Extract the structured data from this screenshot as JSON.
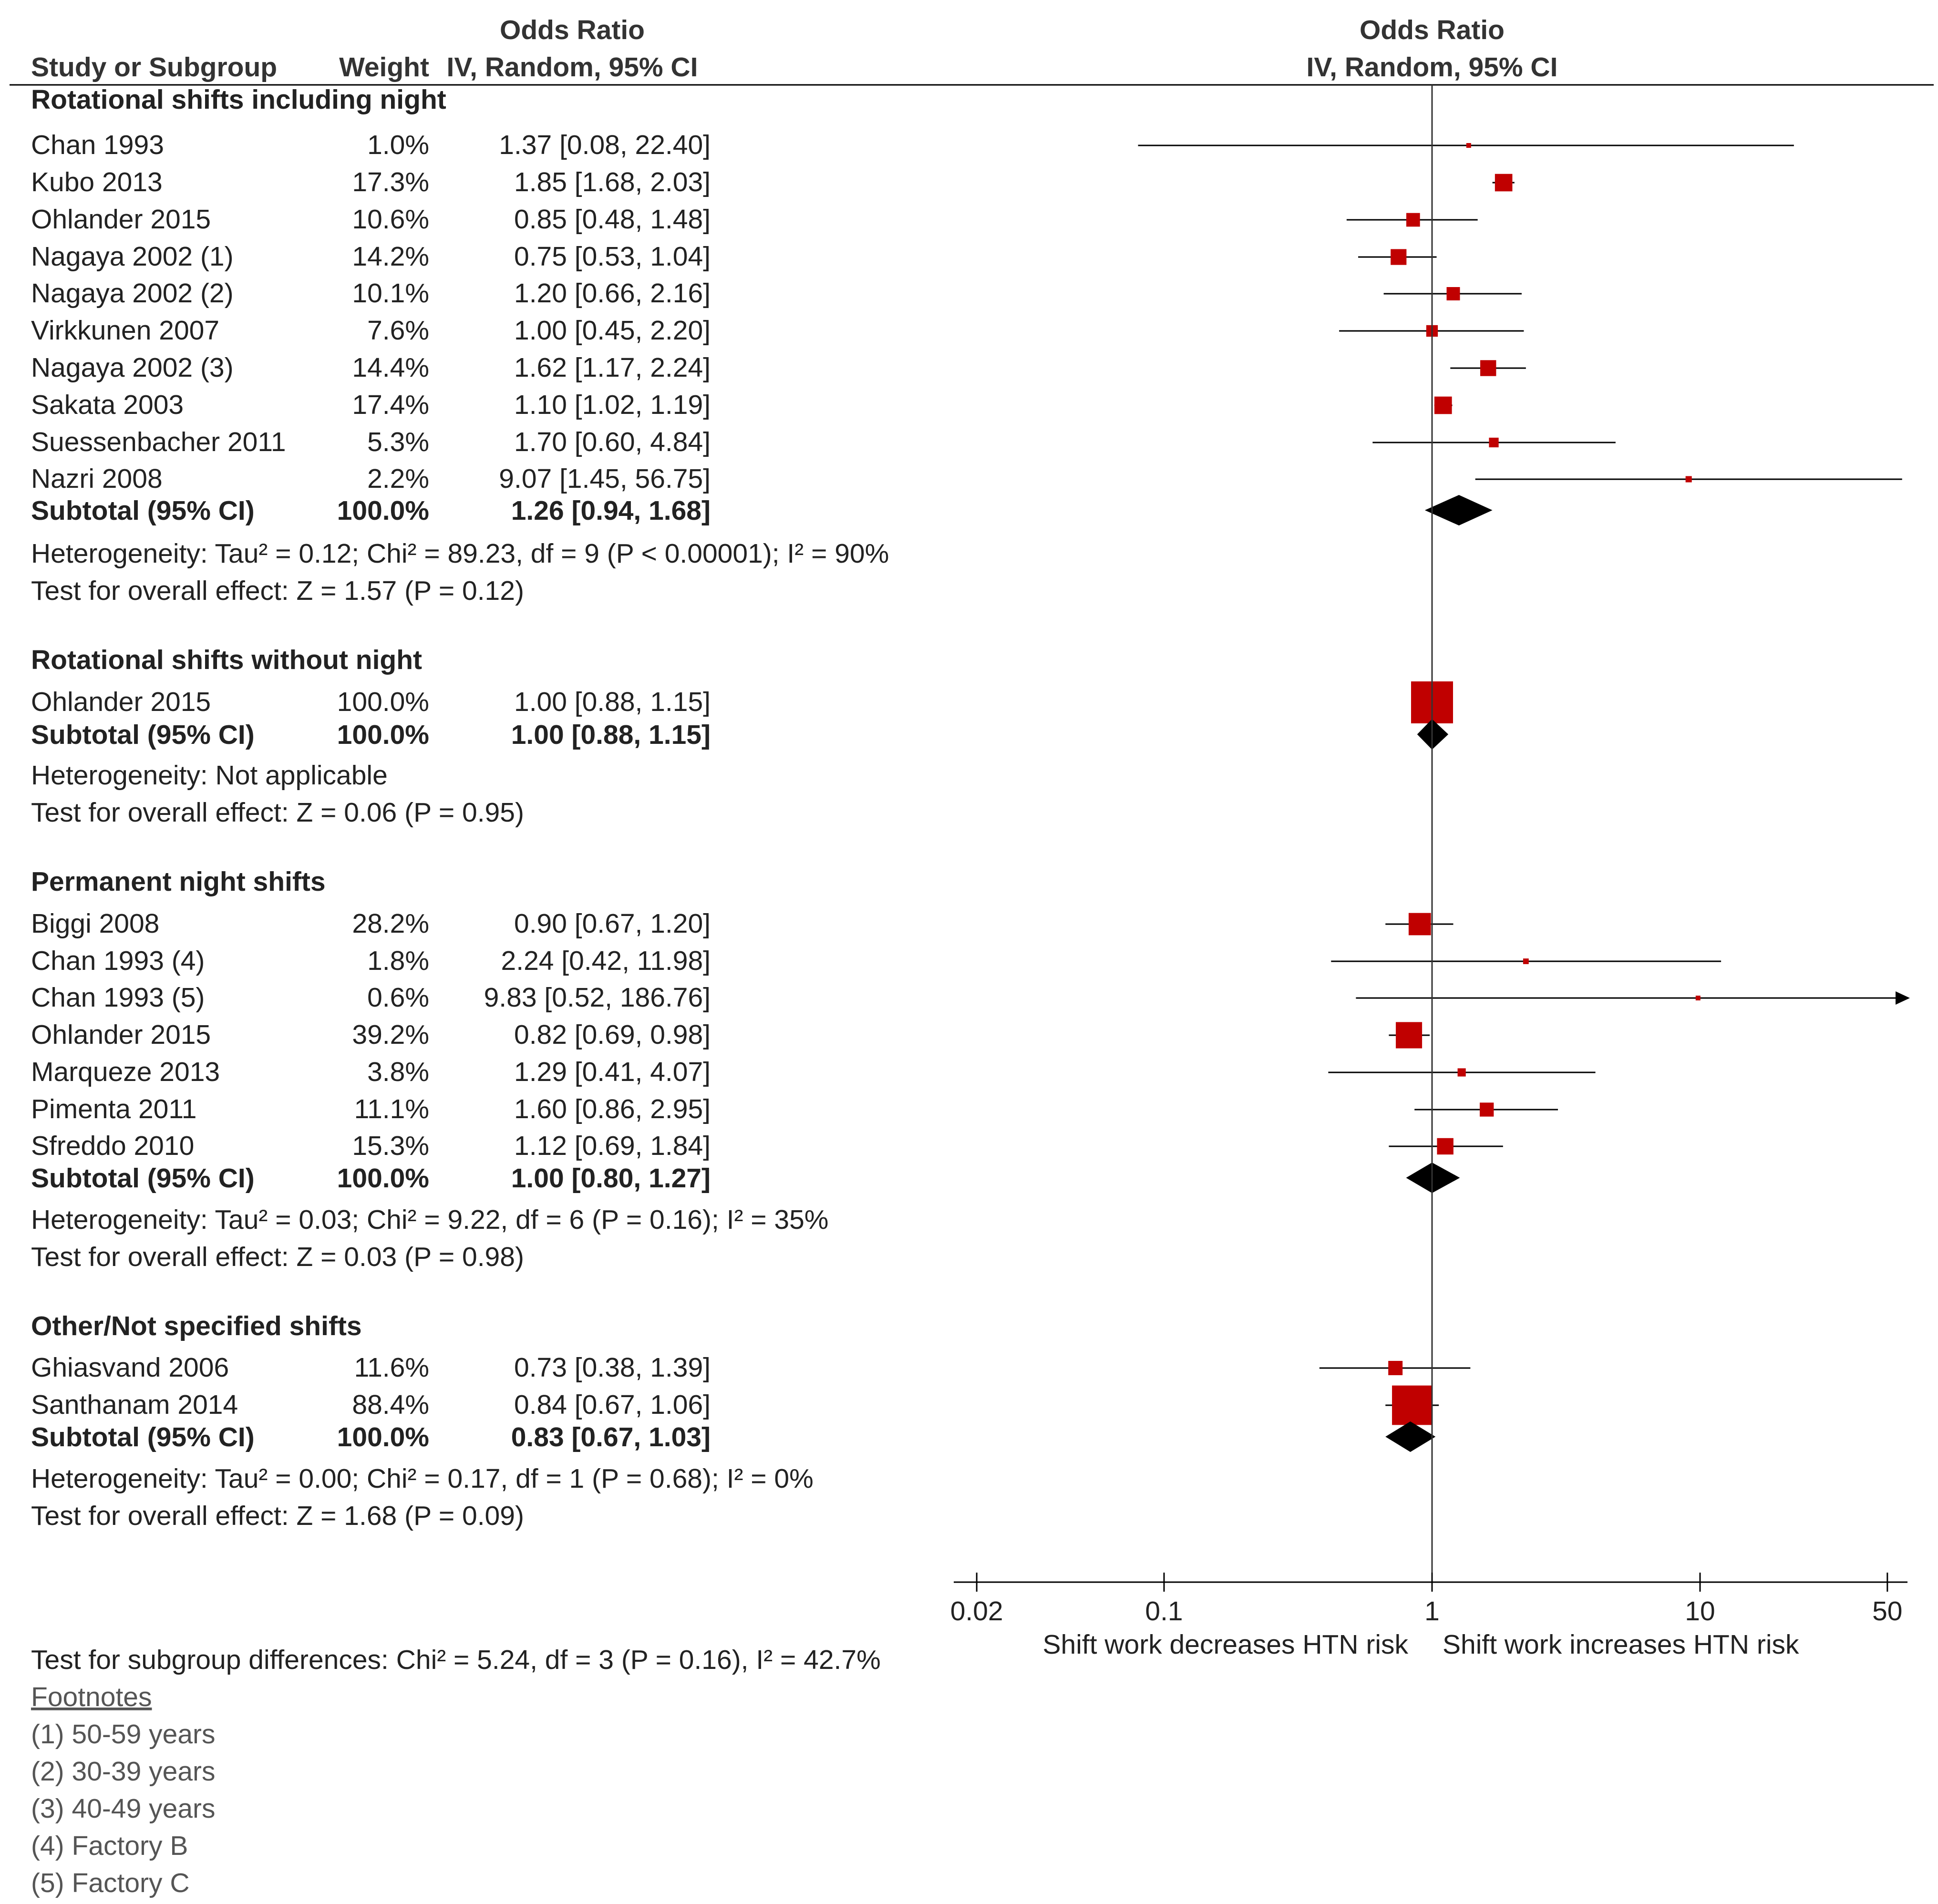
{
  "colors": {
    "marker": "#c00000",
    "diamond": "#000000",
    "text": "#222222",
    "line": "#000000"
  },
  "headers": {
    "study": "Study or Subgroup",
    "weight": "Weight",
    "or_title": "Odds Ratio",
    "or_sub": "IV, Random, 95% CI",
    "plot_title": "Odds Ratio",
    "plot_sub": "IV, Random, 95% CI"
  },
  "chart_data": {
    "type": "forest",
    "scale": "log",
    "xlim": [
      0.02,
      50
    ],
    "ticks": [
      {
        "value": 0.02,
        "label": "0.02"
      },
      {
        "value": 0.1,
        "label": "0.1"
      },
      {
        "value": 1,
        "label": "1"
      },
      {
        "value": 10,
        "label": "10"
      },
      {
        "value": 50,
        "label": "50"
      }
    ],
    "left_label": "Shift work decreases HTN risk",
    "right_label": "Shift work increases HTN risk",
    "groups": [
      {
        "title": "Rotational shifts including night",
        "studies": [
          {
            "name": "Chan 1993",
            "weight": "1.0%",
            "ci_text": "1.37 [0.08, 22.40]",
            "or": 1.37,
            "lo": 0.08,
            "hi": 22.4,
            "w": 1.0
          },
          {
            "name": "Kubo 2013",
            "weight": "17.3%",
            "ci_text": "1.85 [1.68, 2.03]",
            "or": 1.85,
            "lo": 1.68,
            "hi": 2.03,
            "w": 17.3
          },
          {
            "name": "Ohlander 2015",
            "weight": "10.6%",
            "ci_text": "0.85 [0.48, 1.48]",
            "or": 0.85,
            "lo": 0.48,
            "hi": 1.48,
            "w": 10.6
          },
          {
            "name": "Nagaya 2002 (1)",
            "weight": "14.2%",
            "ci_text": "0.75 [0.53, 1.04]",
            "or": 0.75,
            "lo": 0.53,
            "hi": 1.04,
            "w": 14.2
          },
          {
            "name": "Nagaya 2002 (2)",
            "weight": "10.1%",
            "ci_text": "1.20 [0.66, 2.16]",
            "or": 1.2,
            "lo": 0.66,
            "hi": 2.16,
            "w": 10.1
          },
          {
            "name": "Virkkunen 2007",
            "weight": "7.6%",
            "ci_text": "1.00 [0.45, 2.20]",
            "or": 1.0,
            "lo": 0.45,
            "hi": 2.2,
            "w": 7.6
          },
          {
            "name": "Nagaya 2002 (3)",
            "weight": "14.4%",
            "ci_text": "1.62 [1.17, 2.24]",
            "or": 1.62,
            "lo": 1.17,
            "hi": 2.24,
            "w": 14.4
          },
          {
            "name": "Sakata 2003",
            "weight": "17.4%",
            "ci_text": "1.10 [1.02, 1.19]",
            "or": 1.1,
            "lo": 1.02,
            "hi": 1.19,
            "w": 17.4
          },
          {
            "name": "Suessenbacher 2011",
            "weight": "5.3%",
            "ci_text": "1.70 [0.60, 4.84]",
            "or": 1.7,
            "lo": 0.6,
            "hi": 4.84,
            "w": 5.3
          },
          {
            "name": "Nazri 2008",
            "weight": "2.2%",
            "ci_text": "9.07 [1.45, 56.75]",
            "or": 9.07,
            "lo": 1.45,
            "hi": 56.75,
            "w": 2.2
          }
        ],
        "subtotal": {
          "label": "Subtotal (95% CI)",
          "weight": "100.0%",
          "ci_text": "1.26 [0.94, 1.68]",
          "or": 1.26,
          "lo": 0.94,
          "hi": 1.68
        },
        "heterogeneity": "Heterogeneity: Tau² = 0.12; Chi² = 89.23, df = 9 (P < 0.00001); I² = 90%",
        "overall": "Test for overall effect: Z = 1.57 (P = 0.12)"
      },
      {
        "title": "Rotational shifts without night",
        "studies": [
          {
            "name": "Ohlander 2015",
            "weight": "100.0%",
            "ci_text": "1.00 [0.88, 1.15]",
            "or": 1.0,
            "lo": 0.88,
            "hi": 1.15,
            "w": 100.0
          }
        ],
        "subtotal": {
          "label": "Subtotal (95% CI)",
          "weight": "100.0%",
          "ci_text": "1.00 [0.88, 1.15]",
          "or": 1.0,
          "lo": 0.88,
          "hi": 1.15
        },
        "heterogeneity": "Heterogeneity: Not applicable",
        "overall": "Test for overall effect: Z = 0.06 (P = 0.95)"
      },
      {
        "title": "Permanent night shifts",
        "studies": [
          {
            "name": "Biggi 2008",
            "weight": "28.2%",
            "ci_text": "0.90 [0.67, 1.20]",
            "or": 0.9,
            "lo": 0.67,
            "hi": 1.2,
            "w": 28.2
          },
          {
            "name": "Chan 1993 (4)",
            "weight": "1.8%",
            "ci_text": "2.24 [0.42, 11.98]",
            "or": 2.24,
            "lo": 0.42,
            "hi": 11.98,
            "w": 1.8
          },
          {
            "name": "Chan 1993 (5)",
            "weight": "0.6%",
            "ci_text": "9.83 [0.52, 186.76]",
            "or": 9.83,
            "lo": 0.52,
            "hi": 186.76,
            "w": 0.6
          },
          {
            "name": "Ohlander 2015",
            "weight": "39.2%",
            "ci_text": "0.82 [0.69, 0.98]",
            "or": 0.82,
            "lo": 0.69,
            "hi": 0.98,
            "w": 39.2
          },
          {
            "name": "Marqueze 2013",
            "weight": "3.8%",
            "ci_text": "1.29 [0.41, 4.07]",
            "or": 1.29,
            "lo": 0.41,
            "hi": 4.07,
            "w": 3.8
          },
          {
            "name": "Pimenta 2011",
            "weight": "11.1%",
            "ci_text": "1.60 [0.86, 2.95]",
            "or": 1.6,
            "lo": 0.86,
            "hi": 2.95,
            "w": 11.1
          },
          {
            "name": "Sfreddo 2010",
            "weight": "15.3%",
            "ci_text": "1.12 [0.69, 1.84]",
            "or": 1.12,
            "lo": 0.69,
            "hi": 1.84,
            "w": 15.3
          }
        ],
        "subtotal": {
          "label": "Subtotal (95% CI)",
          "weight": "100.0%",
          "ci_text": "1.00 [0.80, 1.27]",
          "or": 1.0,
          "lo": 0.8,
          "hi": 1.27
        },
        "heterogeneity": "Heterogeneity: Tau² = 0.03; Chi² = 9.22, df = 6 (P = 0.16); I² = 35%",
        "overall": "Test for overall effect: Z = 0.03 (P = 0.98)"
      },
      {
        "title": "Other/Not specified shifts",
        "studies": [
          {
            "name": "Ghiasvand 2006",
            "weight": "11.6%",
            "ci_text": "0.73 [0.38, 1.39]",
            "or": 0.73,
            "lo": 0.38,
            "hi": 1.39,
            "w": 11.6
          },
          {
            "name": "Santhanam  2014",
            "weight": "88.4%",
            "ci_text": "0.84 [0.67, 1.06]",
            "or": 0.84,
            "lo": 0.67,
            "hi": 1.06,
            "w": 88.4
          }
        ],
        "subtotal": {
          "label": "Subtotal (95% CI)",
          "weight": "100.0%",
          "ci_text": "0.83 [0.67, 1.03]",
          "or": 0.83,
          "lo": 0.67,
          "hi": 1.03
        },
        "heterogeneity": "Heterogeneity: Tau² = 0.00; Chi² = 0.17, df = 1 (P = 0.68); I² = 0%",
        "overall": "Test for overall effect: Z = 1.68 (P = 0.09)"
      }
    ],
    "subgroup_test": "Test for subgroup differences: Chi² = 5.24, df = 3 (P = 0.16), I² = 42.7%",
    "footnotes_title": "Footnotes",
    "footnotes": [
      "(1) 50-59 years",
      "(2) 30-39 years",
      "(3) 40-49 years",
      "(4) Factory B",
      "(5) Factory C"
    ]
  }
}
